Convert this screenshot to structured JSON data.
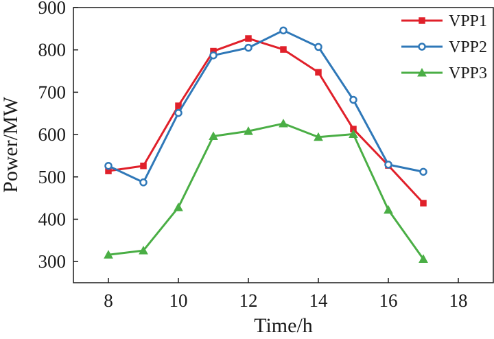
{
  "chart_data": {
    "type": "line",
    "title": "",
    "xlabel": "Time/h",
    "ylabel": "Power/MW",
    "xlim": [
      7,
      19
    ],
    "ylim": [
      250,
      900
    ],
    "xticks": [
      8,
      10,
      12,
      14,
      16,
      18
    ],
    "yticks": [
      300,
      400,
      500,
      600,
      700,
      800,
      900
    ],
    "grid": false,
    "legend_position": "top-right",
    "x": [
      8,
      9,
      10,
      11,
      12,
      13,
      14,
      15,
      16,
      17
    ],
    "series": [
      {
        "name": "VPP1",
        "color": "#e0202a",
        "marker": "square",
        "values": [
          514,
          526,
          668,
          797,
          827,
          801,
          747,
          613,
          527,
          438
        ]
      },
      {
        "name": "VPP2",
        "color": "#2f78b8",
        "marker": "circle",
        "values": [
          526,
          487,
          651,
          787,
          805,
          846,
          807,
          682,
          529,
          512
        ]
      },
      {
        "name": "VPP3",
        "color": "#4aae45",
        "marker": "triangle",
        "values": [
          316,
          326,
          428,
          596,
          608,
          626,
          594,
          601,
          422,
          306
        ]
      }
    ]
  }
}
